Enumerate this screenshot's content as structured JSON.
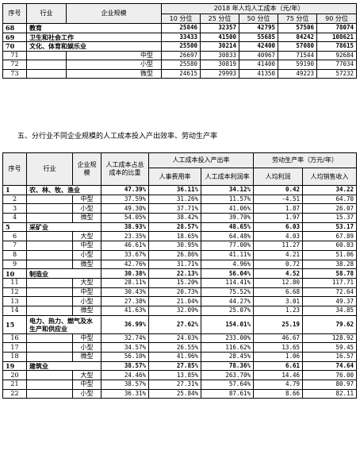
{
  "table1": {
    "header": {
      "seq": "序号",
      "industry": "行业",
      "scale": "企业规模",
      "group": "2018 年人均人工成本（元/年）",
      "percentiles": [
        "10 分位",
        "25 分位",
        "50 分位",
        "75 分位",
        "90 分位"
      ]
    },
    "rows": [
      {
        "seq": "68",
        "industry": "教育",
        "scale": "",
        "values": [
          "25846",
          "32357",
          "42795",
          "57506",
          "78074"
        ],
        "bold": true
      },
      {
        "seq": "69",
        "industry": "卫生和社会工作",
        "scale": "",
        "values": [
          "33433",
          "41500",
          "55685",
          "84242",
          "108621"
        ],
        "bold": true
      },
      {
        "seq": "70",
        "industry": "文化、体育和娱乐业",
        "scale": "",
        "values": [
          "25500",
          "30214",
          "42400",
          "57080",
          "78615"
        ],
        "bold": true
      },
      {
        "seq": "71",
        "industry": "",
        "scale": "中型",
        "values": [
          "26697",
          "30833",
          "40967",
          "71544",
          "92684"
        ],
        "bold": false
      },
      {
        "seq": "72",
        "industry": "",
        "scale": "小型",
        "values": [
          "25580",
          "30819",
          "41400",
          "59190",
          "77034"
        ],
        "bold": false
      },
      {
        "seq": "73",
        "industry": "",
        "scale": "微型",
        "values": [
          "24615",
          "29993",
          "41350",
          "49223",
          "57232"
        ],
        "bold": false
      }
    ]
  },
  "section_title": "五、分行业不同企业规模的人工成本投入产出效率、劳动生产率",
  "table2": {
    "header": {
      "seq": "序号",
      "industry": "行业",
      "scale": "企业规模",
      "share": "人工成本占总成本的比重",
      "group_io": "人工成本投入产出率",
      "group_lp": "劳动生产率（万元/年）",
      "sub": [
        "人事费用率",
        "人工成本利润率",
        "人均利润",
        "人均销售收入"
      ]
    },
    "rows": [
      {
        "seq": "1",
        "industry": "农、林、牧、渔业",
        "scale": "",
        "values": [
          "47.39%",
          "36.11%",
          "34.12%",
          "0.42",
          "34.22"
        ],
        "bold": true
      },
      {
        "seq": "2",
        "industry": "",
        "scale": "中型",
        "values": [
          "37.59%",
          "31.26%",
          "11.57%",
          "-4.51",
          "64.70"
        ],
        "bold": false
      },
      {
        "seq": "3",
        "industry": "",
        "scale": "小型",
        "values": [
          "49.30%",
          "37.71%",
          "41.06%",
          "1.87",
          "26.07"
        ],
        "bold": false
      },
      {
        "seq": "4",
        "industry": "",
        "scale": "微型",
        "values": [
          "54.05%",
          "38.42%",
          "39.70%",
          "1.97",
          "15.37"
        ],
        "bold": false
      },
      {
        "seq": "5",
        "industry": "采矿业",
        "scale": "",
        "values": [
          "38.93%",
          "28.57%",
          "48.65%",
          "6.03",
          "53.17"
        ],
        "bold": true
      },
      {
        "seq": "6",
        "industry": "",
        "scale": "大型",
        "values": [
          "23.35%",
          "18.65%",
          "64.48%",
          "4.03",
          "67.89"
        ],
        "bold": false
      },
      {
        "seq": "7",
        "industry": "",
        "scale": "中型",
        "values": [
          "46.61%",
          "30.95%",
          "77.00%",
          "11.27",
          "60.83"
        ],
        "bold": false
      },
      {
        "seq": "8",
        "industry": "",
        "scale": "小型",
        "values": [
          "33.67%",
          "26.86%",
          "41.11%",
          "4.21",
          "51.06"
        ],
        "bold": false
      },
      {
        "seq": "9",
        "industry": "",
        "scale": "微型",
        "values": [
          "42.76%",
          "31.71%",
          "4.96%",
          "0.72",
          "38.28"
        ],
        "bold": false
      },
      {
        "seq": "10",
        "industry": "制造业",
        "scale": "",
        "values": [
          "30.38%",
          "22.13%",
          "56.04%",
          "4.52",
          "58.78"
        ],
        "bold": true
      },
      {
        "seq": "11",
        "industry": "",
        "scale": "大型",
        "values": [
          "28.11%",
          "15.20%",
          "114.41%",
          "12.80",
          "117.71"
        ],
        "bold": false
      },
      {
        "seq": "12",
        "industry": "",
        "scale": "中型",
        "values": [
          "30.43%",
          "20.73%",
          "75.52%",
          "6.68",
          "72.64"
        ],
        "bold": false
      },
      {
        "seq": "13",
        "industry": "",
        "scale": "小型",
        "values": [
          "27.38%",
          "21.04%",
          "44.27%",
          "3.01",
          "49.37"
        ],
        "bold": false
      },
      {
        "seq": "14",
        "industry": "",
        "scale": "微型",
        "values": [
          "41.63%",
          "32.09%",
          "25.07%",
          "1.23",
          "34.85"
        ],
        "bold": false
      },
      {
        "seq": "15",
        "industry": "电力、热力、燃气及水生产和供应业",
        "scale": "",
        "values": [
          "36.99%",
          "27.62%",
          "154.01%",
          "25.19",
          "79.62"
        ],
        "bold": true
      },
      {
        "seq": "16",
        "industry": "",
        "scale": "中型",
        "values": [
          "32.74%",
          "24.03%",
          "233.00%",
          "46.67",
          "128.92"
        ],
        "bold": false
      },
      {
        "seq": "17",
        "industry": "",
        "scale": "小型",
        "values": [
          "34.57%",
          "26.55%",
          "116.62%",
          "13.65",
          "59.45"
        ],
        "bold": false
      },
      {
        "seq": "18",
        "industry": "",
        "scale": "微型",
        "values": [
          "56.10%",
          "41.96%",
          "28.45%",
          "1.06",
          "16.57"
        ],
        "bold": false
      },
      {
        "seq": "19",
        "industry": "建筑业",
        "scale": "",
        "values": [
          "38.57%",
          "27.85%",
          "78.36%",
          "6.61",
          "74.64"
        ],
        "bold": true
      },
      {
        "seq": "20",
        "industry": "",
        "scale": "大型",
        "values": [
          "24.46%",
          "13.85%",
          "263.70%",
          "14.46",
          "76.00"
        ],
        "bold": false
      },
      {
        "seq": "21",
        "industry": "",
        "scale": "中型",
        "values": [
          "38.57%",
          "27.31%",
          "57.64%",
          "4.79",
          "80.97"
        ],
        "bold": false
      },
      {
        "seq": "22",
        "industry": "",
        "scale": "小型",
        "values": [
          "36.31%",
          "25.84%",
          "87.61%",
          "8.66",
          "82.11"
        ],
        "bold": false
      }
    ]
  }
}
